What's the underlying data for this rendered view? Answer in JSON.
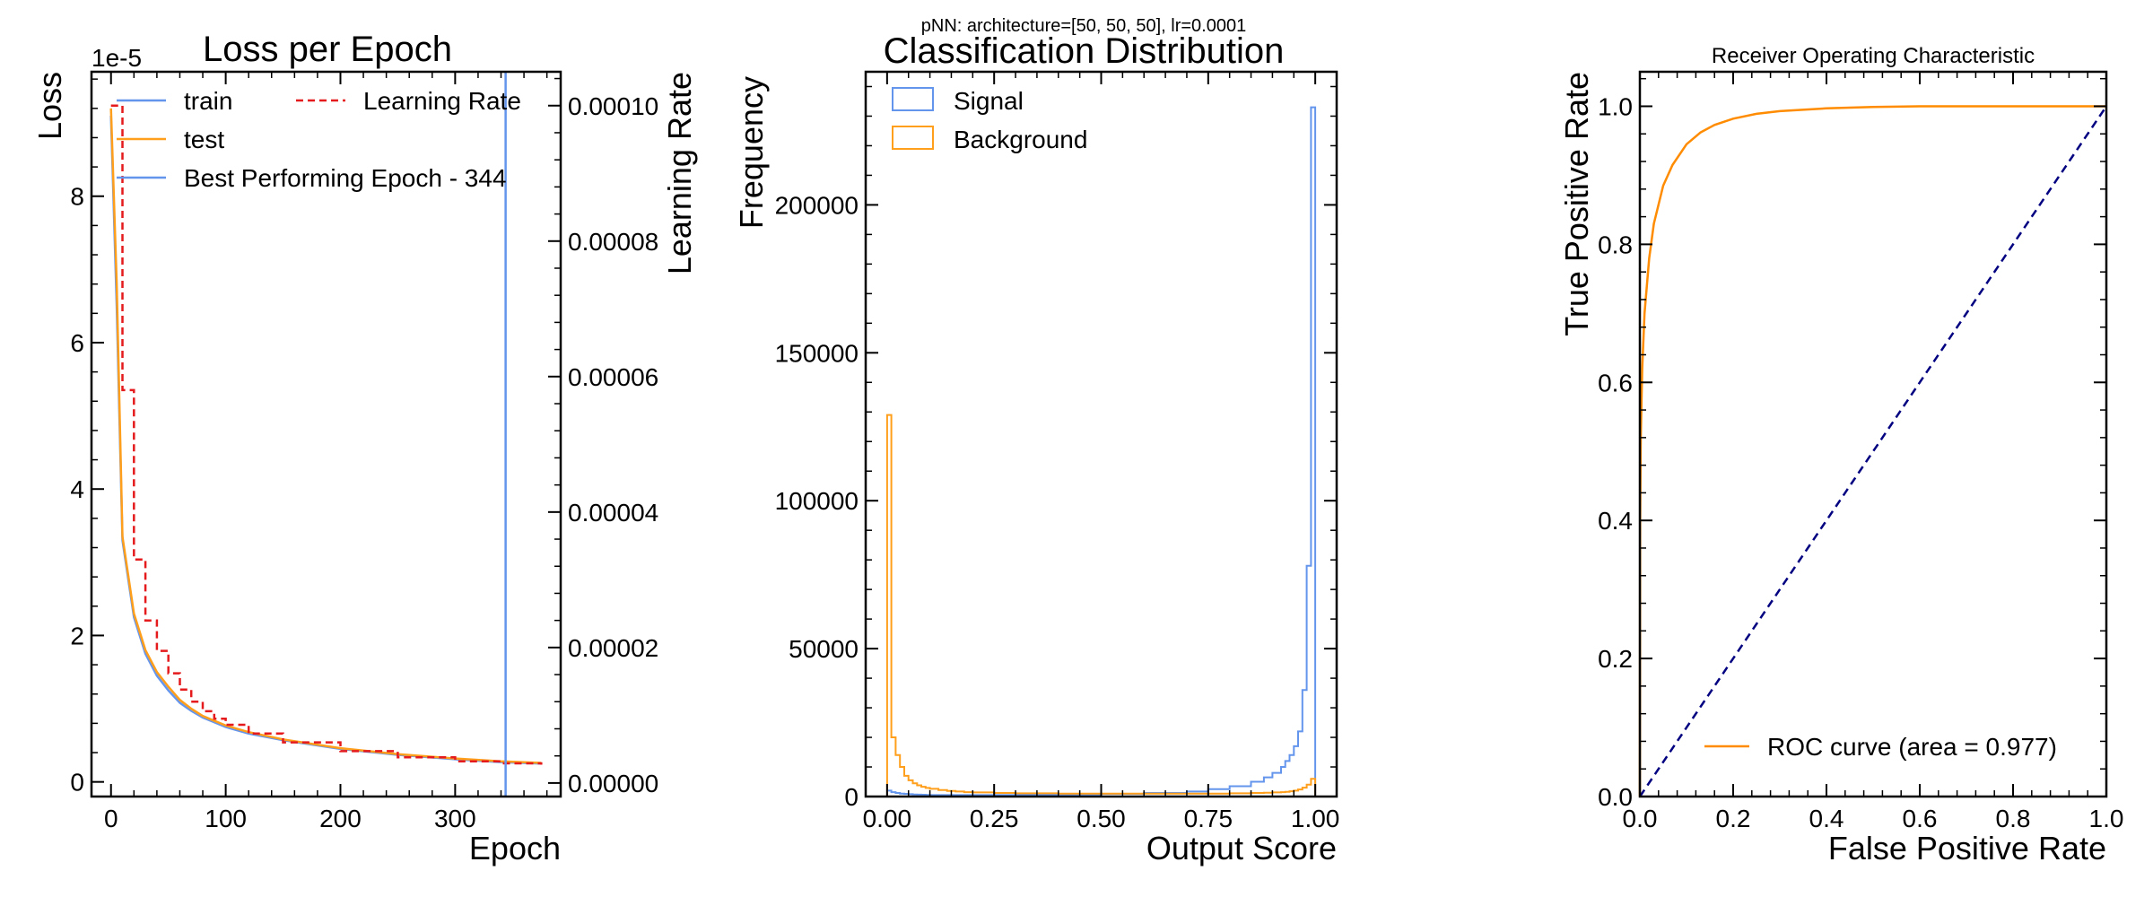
{
  "figure": {
    "suptitle": "pNN: architecture=[50, 50, 50], lr=0.0001"
  },
  "chart_data": [
    {
      "type": "line",
      "title": "Loss per Epoch",
      "xlabel": "Epoch",
      "ylabel": "Loss",
      "y_multiplier_label": "1e-5",
      "ylabel_right": "Learning Rate",
      "xlim": [
        -17,
        392
      ],
      "ylim": [
        -2e-06,
        9.7e-05
      ],
      "y2lim": [
        -2e-06,
        0.000105
      ],
      "xticks": [
        0,
        100,
        200,
        300
      ],
      "xtick_labels": [
        "0",
        "100",
        "200",
        "300"
      ],
      "yticks": [
        0,
        2e-05,
        4e-05,
        6e-05,
        8e-05
      ],
      "ytick_labels": [
        "0",
        "2",
        "4",
        "6",
        "8"
      ],
      "y2ticks": [
        0,
        2e-05,
        4e-05,
        6e-05,
        8e-05,
        0.0001
      ],
      "y2tick_labels": [
        "0.00000",
        "0.00002",
        "0.00004",
        "0.00006",
        "0.00008",
        "0.00010"
      ],
      "legend_position": "top",
      "series": [
        {
          "name": "train",
          "color": "#6495ed",
          "style": "solid",
          "axis": "left",
          "x": [
            0,
            5,
            10,
            20,
            30,
            40,
            50,
            60,
            70,
            80,
            100,
            120,
            150,
            200,
            250,
            300,
            340,
            375
          ],
          "y": [
            9.1e-05,
            6.5e-05,
            3.3e-05,
            2.25e-05,
            1.75e-05,
            1.45e-05,
            1.25e-05,
            1.08e-05,
            9.7e-06,
            8.8e-06,
            7.5e-06,
            6.6e-06,
            5.7e-06,
            4.5e-06,
            3.7e-06,
            3.1e-06,
            2.7e-06,
            2.5e-06
          ]
        },
        {
          "name": "test",
          "color": "#ff9f1c",
          "style": "solid",
          "axis": "left",
          "x": [
            0,
            5,
            10,
            20,
            30,
            40,
            50,
            60,
            70,
            80,
            100,
            120,
            150,
            200,
            250,
            300,
            340,
            375
          ],
          "y": [
            9.2e-05,
            6.8e-05,
            3.35e-05,
            2.3e-05,
            1.8e-05,
            1.5e-05,
            1.3e-05,
            1.12e-05,
            1e-05,
            9e-06,
            7.7e-06,
            6.8e-06,
            5.8e-06,
            4.6e-06,
            3.8e-06,
            3.2e-06,
            2.8e-06,
            2.6e-06
          ]
        },
        {
          "name": "Learning Rate",
          "color": "#e41a1c",
          "style": "dashed",
          "axis": "right",
          "x": [
            0,
            10,
            20,
            30,
            40,
            50,
            60,
            70,
            80,
            90,
            100,
            120,
            150,
            200,
            250,
            300,
            340,
            375
          ],
          "y": [
            0.0001,
            5.8e-05,
            3.3e-05,
            2.4e-05,
            1.95e-05,
            1.62e-05,
            1.38e-05,
            1.2e-05,
            1.06e-05,
            9.5e-06,
            8.6e-06,
            7.3e-06,
            6e-06,
            4.7e-06,
            3.8e-06,
            3.2e-06,
            2.9e-06,
            2.7e-06
          ]
        },
        {
          "name": "Best Performing Epoch - 344",
          "color": "#6495ed",
          "style": "vline",
          "x": 344
        }
      ]
    },
    {
      "type": "histogram",
      "title": "Classification Distribution",
      "xlabel": "Output Score",
      "ylabel": "Frequency",
      "xlim": [
        -0.05,
        1.05
      ],
      "ylim": [
        0,
        245000
      ],
      "xticks": [
        0,
        0.25,
        0.5,
        0.75,
        1
      ],
      "xtick_labels": [
        "0.00",
        "0.25",
        "0.50",
        "0.75",
        "1.00"
      ],
      "yticks": [
        0,
        50000,
        100000,
        150000,
        200000
      ],
      "ytick_labels": [
        "0",
        "50000",
        "100000",
        "150000",
        "200000"
      ],
      "legend_position": "top-left",
      "bin_edges": [
        0,
        0.01,
        0.02,
        0.03,
        0.04,
        0.05,
        0.06,
        0.07,
        0.08,
        0.09,
        0.1,
        0.12,
        0.14,
        0.16,
        0.18,
        0.2,
        0.25,
        0.3,
        0.4,
        0.5,
        0.6,
        0.7,
        0.75,
        0.8,
        0.85,
        0.88,
        0.9,
        0.92,
        0.93,
        0.94,
        0.95,
        0.96,
        0.97,
        0.98,
        0.99,
        1.0
      ],
      "series": [
        {
          "name": "Signal",
          "color": "#6495ed",
          "counts": [
            2000,
            1500,
            1200,
            1000,
            900,
            800,
            700,
            650,
            600,
            550,
            500,
            500,
            500,
            500,
            500,
            500,
            500,
            600,
            700,
            900,
            1200,
            1700,
            2500,
            3500,
            5000,
            6500,
            8000,
            10000,
            12000,
            14000,
            17000,
            22000,
            36000,
            78000,
            233000
          ]
        },
        {
          "name": "Background",
          "color": "#ff9f1c",
          "counts": [
            129000,
            20000,
            14000,
            10000,
            7000,
            5500,
            4500,
            3800,
            3300,
            2900,
            2600,
            2200,
            1900,
            1700,
            1500,
            1400,
            1200,
            1100,
            1000,
            1000,
            1000,
            1000,
            1000,
            1100,
            1200,
            1300,
            1400,
            1500,
            1600,
            1800,
            2000,
            2400,
            3000,
            4000,
            6000
          ]
        }
      ]
    },
    {
      "type": "line",
      "title": "Receiver Operating Characteristic",
      "xlabel": "False Positive Rate",
      "ylabel": "True Positive Rate",
      "xlim": [
        0,
        1
      ],
      "ylim": [
        0,
        1.05
      ],
      "xticks": [
        0,
        0.2,
        0.4,
        0.6,
        0.8,
        1
      ],
      "xtick_labels": [
        "0.0",
        "0.2",
        "0.4",
        "0.6",
        "0.8",
        "1.0"
      ],
      "yticks": [
        0,
        0.2,
        0.4,
        0.6,
        0.8,
        1
      ],
      "ytick_labels": [
        "0.0",
        "0.2",
        "0.4",
        "0.6",
        "0.8",
        "1.0"
      ],
      "legend_position": "bottom-right",
      "series": [
        {
          "name": "ROC curve (area = 0.977)",
          "color": "#ff8c00",
          "style": "solid",
          "x": [
            0,
            0.0005,
            0.002,
            0.005,
            0.01,
            0.02,
            0.03,
            0.05,
            0.07,
            0.1,
            0.13,
            0.16,
            0.2,
            0.25,
            0.3,
            0.4,
            0.5,
            0.6,
            0.8,
            1.0
          ],
          "y": [
            0,
            0.4,
            0.52,
            0.62,
            0.7,
            0.78,
            0.83,
            0.885,
            0.915,
            0.945,
            0.962,
            0.973,
            0.982,
            0.989,
            0.993,
            0.997,
            0.999,
            1.0,
            1.0,
            1.0
          ]
        },
        {
          "name": "",
          "color": "#000080",
          "style": "dashed",
          "x": [
            0,
            1
          ],
          "y": [
            0,
            1
          ]
        }
      ]
    }
  ]
}
